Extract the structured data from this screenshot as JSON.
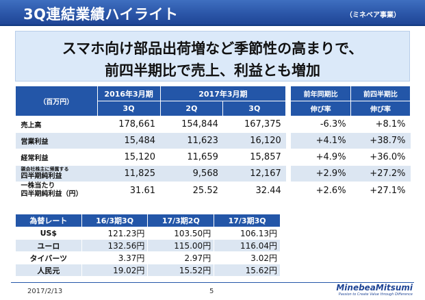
{
  "header": {
    "title": "3Q連結業績ハイライト",
    "segment_tag": "（ミネベア事業）"
  },
  "headline": {
    "line1": "スマホ向け部品出荷増など季節性の高まりで、",
    "line2": "前四半期比で売上、利益とも増加"
  },
  "results_table": {
    "unit_label": "（百万円）",
    "fy2016_label": "2016年3月期",
    "fy2017_label": "2017年3月期",
    "yoy_label": "前年同期比",
    "qoq_label": "前四半期比",
    "growth_label": "伸び率",
    "col_fy2016_3q": "3Q",
    "col_fy2017_2q": "2Q",
    "col_fy2017_3q": "3Q",
    "rows": [
      {
        "label": "売上高",
        "label_small": "",
        "v1": "178,661",
        "v2": "154,844",
        "v3": "167,375",
        "yoy": "-6.3%",
        "qoq": "+8.1%"
      },
      {
        "label": "営業利益",
        "label_small": "",
        "v1": "15,484",
        "v2": "11,623",
        "v3": "16,120",
        "yoy": "+4.1%",
        "qoq": "+38.7%"
      },
      {
        "label": "経常利益",
        "label_small": "",
        "v1": "15,120",
        "v2": "11,659",
        "v3": "15,857",
        "yoy": "+4.9%",
        "qoq": "+36.0%"
      },
      {
        "label": "四半期純利益",
        "label_small": "親会社株主に帰属する",
        "v1": "11,825",
        "v2": "9,568",
        "v3": "12,167",
        "yoy": "+2.9%",
        "qoq": "+27.2%"
      },
      {
        "label": "四半期純利益（円）",
        "label_small": "一株当たり",
        "v1": "31.61",
        "v2": "25.52",
        "v3": "32.44",
        "yoy": "+2.6%",
        "qoq": "+27.1%"
      }
    ]
  },
  "fx_table": {
    "header_label": "為替レート",
    "col1": "16/3期3Q",
    "col2": "17/3期2Q",
    "col3": "17/3期3Q",
    "rows": [
      {
        "currency": "US$",
        "v1": "121.23円",
        "v2": "103.50円",
        "v3": "106.13円"
      },
      {
        "currency": "ユーロ",
        "v1": "132.56円",
        "v2": "115.00円",
        "v3": "116.04円"
      },
      {
        "currency": "タイバーツ",
        "v1": "3.37円",
        "v2": "2.97円",
        "v3": "3.02円"
      },
      {
        "currency": "人民元",
        "v1": "19.02円",
        "v2": "15.52円",
        "v3": "15.62円"
      }
    ]
  },
  "footer": {
    "date": "2017/2/13",
    "page": "5",
    "logo_main": "MinebeaMitsumi",
    "logo_sub": "Passion to Create Value through Difference"
  },
  "colors": {
    "accent": "#2356a8",
    "row_alt": "#dce6f2",
    "headline_bg": "#dbe9f9"
  }
}
